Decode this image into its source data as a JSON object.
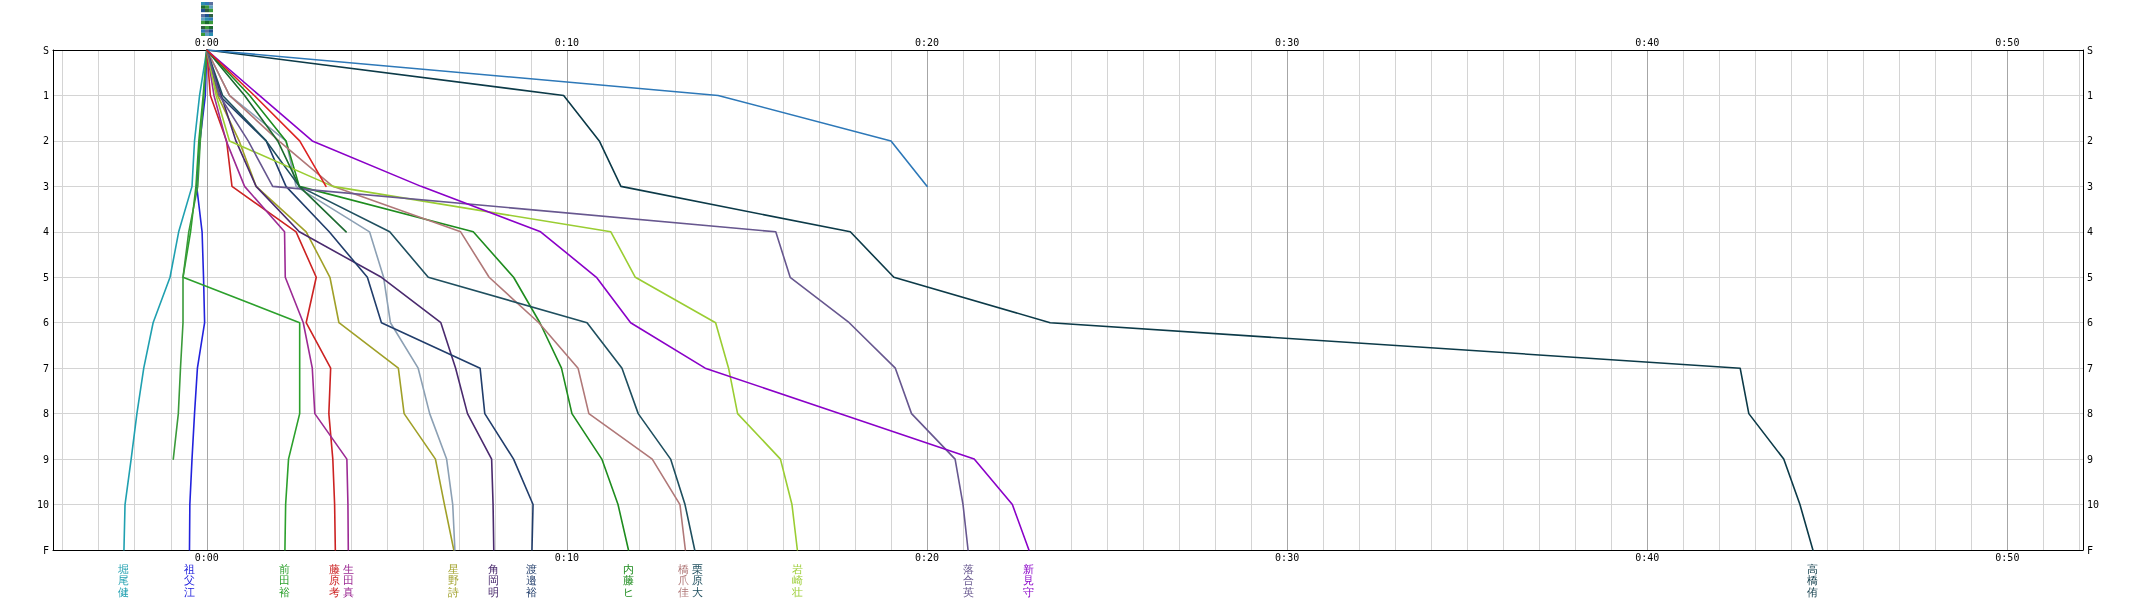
{
  "chart_data": {
    "type": "line",
    "marker": "none",
    "line_style": "solid",
    "grid": true,
    "xlim": [
      -4.27,
      52.1
    ],
    "xticks": [
      {
        "value": -4,
        "label": null
      },
      {
        "value": -3,
        "label": null
      },
      {
        "value": -2,
        "label": null
      },
      {
        "value": -1,
        "label": null
      },
      {
        "value": 0,
        "label": "0:00"
      },
      {
        "value": 1,
        "label": null
      },
      {
        "value": 2,
        "label": null
      },
      {
        "value": 3,
        "label": null
      },
      {
        "value": 4,
        "label": null
      },
      {
        "value": 5,
        "label": null
      },
      {
        "value": 6,
        "label": null
      },
      {
        "value": 7,
        "label": null
      },
      {
        "value": 8,
        "label": null
      },
      {
        "value": 9,
        "label": null
      },
      {
        "value": 10,
        "label": "0:10"
      },
      {
        "value": 11,
        "label": null
      },
      {
        "value": 12,
        "label": null
      },
      {
        "value": 13,
        "label": null
      },
      {
        "value": 14,
        "label": null
      },
      {
        "value": 15,
        "label": null
      },
      {
        "value": 16,
        "label": null
      },
      {
        "value": 17,
        "label": null
      },
      {
        "value": 18,
        "label": null
      },
      {
        "value": 19,
        "label": null
      },
      {
        "value": 20,
        "label": "0:20"
      },
      {
        "value": 21,
        "label": null
      },
      {
        "value": 22,
        "label": null
      },
      {
        "value": 23,
        "label": null
      },
      {
        "value": 24,
        "label": null
      },
      {
        "value": 25,
        "label": null
      },
      {
        "value": 26,
        "label": null
      },
      {
        "value": 27,
        "label": null
      },
      {
        "value": 28,
        "label": null
      },
      {
        "value": 29,
        "label": null
      },
      {
        "value": 30,
        "label": "0:30"
      },
      {
        "value": 31,
        "label": null
      },
      {
        "value": 32,
        "label": null
      },
      {
        "value": 33,
        "label": null
      },
      {
        "value": 34,
        "label": null
      },
      {
        "value": 35,
        "label": null
      },
      {
        "value": 36,
        "label": null
      },
      {
        "value": 37,
        "label": null
      },
      {
        "value": 38,
        "label": null
      },
      {
        "value": 39,
        "label": null
      },
      {
        "value": 40,
        "label": "0:40"
      },
      {
        "value": 41,
        "label": null
      },
      {
        "value": 42,
        "label": null
      },
      {
        "value": 43,
        "label": null
      },
      {
        "value": 44,
        "label": null
      },
      {
        "value": 45,
        "label": null
      },
      {
        "value": 46,
        "label": null
      },
      {
        "value": 47,
        "label": null
      },
      {
        "value": 48,
        "label": null
      },
      {
        "value": 49,
        "label": null
      },
      {
        "value": 50,
        "label": "0:50"
      },
      {
        "value": 51,
        "label": null
      },
      {
        "value": 52,
        "label": null
      }
    ],
    "x2lim": [
      -4.27,
      52.1
    ],
    "x2ticks": [
      {
        "value": -4,
        "label": null
      },
      {
        "value": -3,
        "label": null
      },
      {
        "value": -2,
        "label": null
      },
      {
        "value": -1,
        "label": null
      },
      {
        "value": 0,
        "label": "0:00"
      },
      {
        "value": 1,
        "label": null
      },
      {
        "value": 2,
        "label": null
      },
      {
        "value": 3,
        "label": null
      },
      {
        "value": 4,
        "label": null
      },
      {
        "value": 5,
        "label": null
      },
      {
        "value": 6,
        "label": null
      },
      {
        "value": 7,
        "label": null
      },
      {
        "value": 8,
        "label": null
      },
      {
        "value": 9,
        "label": null
      },
      {
        "value": 10,
        "label": "0:10"
      },
      {
        "value": 11,
        "label": null
      },
      {
        "value": 12,
        "label": null
      },
      {
        "value": 13,
        "label": null
      },
      {
        "value": 14,
        "label": null
      },
      {
        "value": 15,
        "label": null
      },
      {
        "value": 16,
        "label": null
      },
      {
        "value": 17,
        "label": null
      },
      {
        "value": 18,
        "label": null
      },
      {
        "value": 19,
        "label": null
      },
      {
        "value": 20,
        "label": "0:20"
      },
      {
        "value": 21,
        "label": null
      },
      {
        "value": 22,
        "label": null
      },
      {
        "value": 23,
        "label": null
      },
      {
        "value": 24,
        "label": null
      },
      {
        "value": 25,
        "label": null
      },
      {
        "value": 26,
        "label": null
      },
      {
        "value": 27,
        "label": null
      },
      {
        "value": 28,
        "label": null
      },
      {
        "value": 29,
        "label": null
      },
      {
        "value": 30,
        "label": "0:30"
      },
      {
        "value": 31,
        "label": null
      },
      {
        "value": 32,
        "label": null
      },
      {
        "value": 33,
        "label": null
      },
      {
        "value": 34,
        "label": null
      },
      {
        "value": 35,
        "label": null
      },
      {
        "value": 36,
        "label": null
      },
      {
        "value": 37,
        "label": null
      },
      {
        "value": 38,
        "label": null
      },
      {
        "value": 39,
        "label": null
      },
      {
        "value": 40,
        "label": "0:40"
      },
      {
        "value": 41,
        "label": null
      },
      {
        "value": 42,
        "label": null
      },
      {
        "value": 43,
        "label": null
      },
      {
        "value": 44,
        "label": null
      },
      {
        "value": 45,
        "label": null
      },
      {
        "value": 46,
        "label": null
      },
      {
        "value": 47,
        "label": null
      },
      {
        "value": 48,
        "label": null
      },
      {
        "value": 49,
        "label": null
      },
      {
        "value": 50,
        "label": "0:50"
      },
      {
        "value": 51,
        "label": null
      },
      {
        "value": 52,
        "label": null
      }
    ],
    "ylim": [
      11,
      0
    ],
    "yticks": [
      {
        "value": 0,
        "label": "S"
      },
      1,
      2,
      3,
      4,
      5,
      6,
      7,
      8,
      9,
      10,
      {
        "value": 11,
        "label": "F"
      }
    ],
    "y2lim": [
      11,
      0
    ],
    "y2ticks": [
      {
        "value": 0,
        "label": "S"
      },
      1,
      2,
      3,
      4,
      5,
      6,
      7,
      8,
      9,
      10,
      {
        "value": 11,
        "label": "F"
      }
    ],
    "series": [
      {
        "name": "堀尾健",
        "color": "#1fa0b0",
        "x": [
          0,
          -0.2,
          -0.34,
          -0.41,
          -0.78,
          -1.02,
          -1.49,
          -1.75,
          -1.94,
          -2.1,
          -2.27,
          -2.3
        ],
        "values": [
          0,
          1,
          2,
          3,
          4,
          5,
          6,
          7,
          8,
          9,
          10,
          11
        ]
      },
      {
        "name": "祖父江",
        "color": "#2222dd",
        "x": [
          0,
          -0.04,
          -0.19,
          -0.28,
          -0.13,
          -0.09,
          -0.06,
          -0.26,
          -0.34,
          -0.41,
          -0.47,
          -0.48
        ],
        "values": [
          0,
          1,
          2,
          3,
          4,
          5,
          6,
          7,
          8,
          9,
          10,
          11
        ]
      },
      {
        "name": "前田裕",
        "color": "#2ca02c",
        "x": [
          0,
          -0.1,
          -0.22,
          -0.3,
          -0.45,
          -0.66,
          2.58,
          2.58,
          2.58,
          2.27,
          2.19,
          2.17
        ],
        "values": [
          0,
          1,
          2,
          3,
          4,
          5,
          6,
          7,
          8,
          9,
          10,
          11
        ]
      },
      {
        "color": "#3a9a3a",
        "x": [
          0,
          -0.08,
          -0.18,
          -0.25,
          -0.5,
          -0.66,
          -0.66,
          -0.73,
          -0.79,
          -0.93
        ],
        "values": [
          0,
          1,
          2,
          3,
          4,
          5,
          6,
          7,
          8,
          9
        ]
      },
      {
        "name": "藤原考",
        "color": "#cc2222",
        "x": [
          0,
          0.1,
          0.55,
          0.7,
          2.48,
          3.04,
          2.76,
          3.44,
          3.39,
          3.5,
          3.55,
          3.57
        ],
        "values": [
          0,
          1,
          2,
          3,
          4,
          5,
          6,
          7,
          8,
          9,
          10,
          11
        ]
      },
      {
        "name": "生田真",
        "color": "#9c2a94",
        "x": [
          0,
          0.2,
          0.54,
          1.05,
          2.16,
          2.18,
          2.68,
          2.93,
          3,
          3.89,
          3.92,
          3.93
        ],
        "values": [
          0,
          1,
          2,
          3,
          4,
          5,
          6,
          7,
          8,
          9,
          10,
          11
        ]
      },
      {
        "name": "星野詩",
        "color": "#a0a028",
        "x": [
          0,
          0.3,
          0.9,
          1.37,
          2.76,
          3.42,
          3.67,
          5.32,
          5.48,
          6.35,
          6.6,
          6.86
        ],
        "values": [
          0,
          1,
          2,
          3,
          4,
          5,
          6,
          7,
          8,
          9,
          10,
          11
        ]
      },
      {
        "color": "#8ca0b4",
        "x": [
          0,
          0.63,
          2.2,
          2.48,
          4.52,
          4.91,
          5.1,
          5.87,
          6.19,
          6.66,
          6.83,
          6.89
        ],
        "values": [
          0,
          1,
          2,
          3,
          4,
          5,
          6,
          7,
          8,
          9,
          10,
          11
        ]
      },
      {
        "name": "角岡明",
        "color": "#4a2a6e",
        "x": [
          0,
          0.4,
          0.81,
          1.37,
          2.57,
          4.85,
          6.5,
          6.91,
          7.24,
          7.91,
          7.95,
          7.97
        ],
        "values": [
          0,
          1,
          2,
          3,
          4,
          5,
          6,
          7,
          8,
          9,
          10,
          11
        ]
      },
      {
        "name": "渡邉裕",
        "color": "#213d6b",
        "x": [
          0,
          0.35,
          1.65,
          2.2,
          3.4,
          4.46,
          4.85,
          7.59,
          7.72,
          8.52,
          9.06,
          9.03
        ],
        "values": [
          0,
          1,
          2,
          3,
          4,
          5,
          6,
          7,
          8,
          9,
          10,
          11
        ]
      },
      {
        "name": "内藤ヒ",
        "color": "#1e8c1e",
        "x": [
          0,
          1.19,
          2.2,
          2.57,
          7.4,
          8.52,
          9.25,
          9.85,
          10.14,
          10.97,
          11.42,
          11.71
        ],
        "values": [
          0,
          1,
          2,
          3,
          4,
          5,
          6,
          7,
          8,
          9,
          10,
          11
        ]
      },
      {
        "name": "橋爪佳",
        "color": "#b07878",
        "x": [
          0,
          0.63,
          2,
          3.5,
          7.05,
          7.84,
          9.22,
          10.31,
          10.61,
          12.37,
          13.14,
          13.29
        ],
        "values": [
          0,
          1,
          2,
          3,
          4,
          5,
          6,
          7,
          8,
          9,
          10,
          11
        ]
      },
      {
        "name": "栗原大",
        "color": "#1f4f5f",
        "x": [
          0,
          0.44,
          1.65,
          2.57,
          5.08,
          6.15,
          10.56,
          11.53,
          11.98,
          12.88,
          13.28,
          13.55
        ],
        "values": [
          0,
          1,
          2,
          3,
          4,
          5,
          6,
          7,
          8,
          9,
          10,
          11
        ]
      },
      {
        "name": "岩崎壮",
        "color": "#9acd32",
        "x": [
          0,
          0.26,
          0.63,
          3.5,
          11.22,
          11.9,
          14.13,
          14.49,
          14.74,
          15.93,
          16.25,
          16.4
        ],
        "values": [
          0,
          1,
          2,
          3,
          4,
          5,
          6,
          7,
          8,
          9,
          10,
          11
        ]
      },
      {
        "name": "落合英",
        "color": "#67578f",
        "x": [
          0,
          0.35,
          1.15,
          1.83,
          15.8,
          16.2,
          17.84,
          19.12,
          19.57,
          20.78,
          21,
          21.14
        ],
        "values": [
          0,
          1,
          2,
          3,
          4,
          5,
          6,
          7,
          8,
          9,
          10,
          11
        ]
      },
      {
        "name": "新見守",
        "color": "#8a00c8",
        "x": [
          0,
          1.46,
          2.93,
          5.95,
          9.27,
          10.82,
          11.77,
          13.84,
          17.59,
          21.31,
          22.37,
          22.83
        ],
        "values": [
          0,
          1,
          2,
          3,
          4,
          5,
          6,
          7,
          8,
          9,
          10,
          11
        ]
      },
      {
        "name": "高橋侑",
        "color": "#0c3a48",
        "x": [
          0,
          9.91,
          10.9,
          11.5,
          17.87,
          19.08,
          23.42,
          42.58,
          42.82,
          43.79,
          44.24,
          44.6
        ],
        "values": [
          0,
          1,
          2,
          3,
          4,
          5,
          6,
          7,
          8,
          9,
          10,
          11
        ]
      },
      {
        "color": "#2d78b8",
        "x": [
          0,
          14.2,
          19,
          20
        ],
        "values": [
          0,
          1,
          2,
          3
        ]
      },
      {
        "color": "#1c6a30",
        "x": [
          0,
          1.05,
          1.97,
          2.57,
          3.87
        ],
        "values": [
          0,
          1,
          2,
          3,
          4
        ]
      },
      {
        "color": "#dd2222",
        "x": [
          0,
          1.32,
          2.58,
          3.31
        ],
        "values": [
          0,
          1,
          2,
          3
        ]
      }
    ]
  }
}
